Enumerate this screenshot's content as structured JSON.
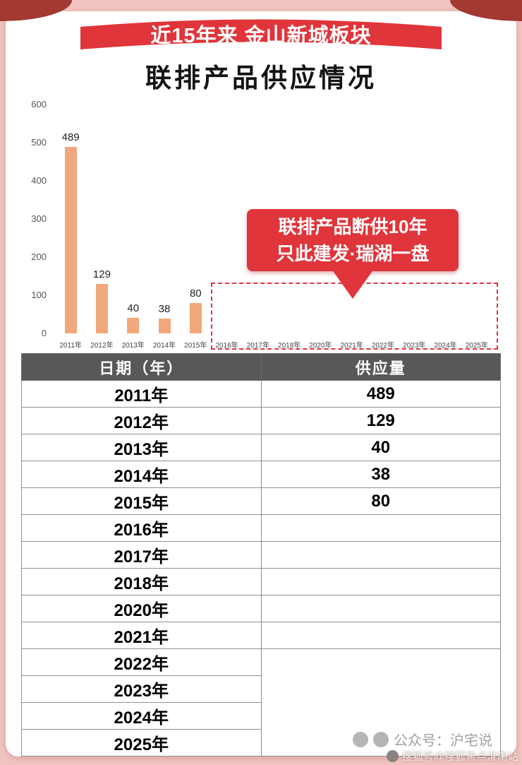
{
  "page": {
    "ribbon_label": "近15年来 金山新城板块",
    "title": "联排产品供应情况"
  },
  "chart_data": {
    "type": "bar",
    "title": "联排产品供应情况",
    "categories": [
      "2011年",
      "2012年",
      "2013年",
      "2014年",
      "2015年",
      "2016年",
      "2017年",
      "2018年",
      "2020年",
      "2021年",
      "2022年",
      "2023年",
      "2024年",
      "2025年"
    ],
    "values": [
      489,
      129,
      40,
      38,
      80,
      0,
      0,
      0,
      0,
      0,
      0,
      0,
      0,
      0
    ],
    "xlabel": "",
    "ylabel": "",
    "ylim": [
      0,
      600
    ],
    "yticks": [
      0,
      100,
      200,
      300,
      400,
      500,
      600
    ],
    "grid": false,
    "legend": false,
    "annotation": {
      "line1": "联排产品断供10年",
      "line2": "只此建发·瑞湖一盘"
    }
  },
  "table": {
    "headers": [
      "日期（年）",
      "供应量"
    ],
    "rows": [
      {
        "year": "2011年",
        "value": "489"
      },
      {
        "year": "2012年",
        "value": "129"
      },
      {
        "year": "2013年",
        "value": "40"
      },
      {
        "year": "2014年",
        "value": "38"
      },
      {
        "year": "2015年",
        "value": "80"
      },
      {
        "year": "2016年",
        "value": ""
      },
      {
        "year": "2017年",
        "value": ""
      },
      {
        "year": "2018年",
        "value": ""
      },
      {
        "year": "2020年",
        "value": ""
      },
      {
        "year": "2021年",
        "value": ""
      },
      {
        "year": "2022年",
        "value": ""
      },
      {
        "year": "2023年",
        "value": ""
      },
      {
        "year": "2024年",
        "value": ""
      },
      {
        "year": "2025年",
        "value": ""
      }
    ],
    "merged_empty_rows": [
      "2022年",
      "2023年",
      "2024年",
      "2025年"
    ]
  },
  "watermarks": {
    "account": "公众号：沪宅说",
    "sohu": "搜狐号@搜狐焦点淮南站"
  },
  "colors": {
    "accent": "#e0353a",
    "bar": "#f2a87d",
    "table-header": "#57585a",
    "page-bg": "#f0c3c1",
    "corner": "#a23a31"
  }
}
